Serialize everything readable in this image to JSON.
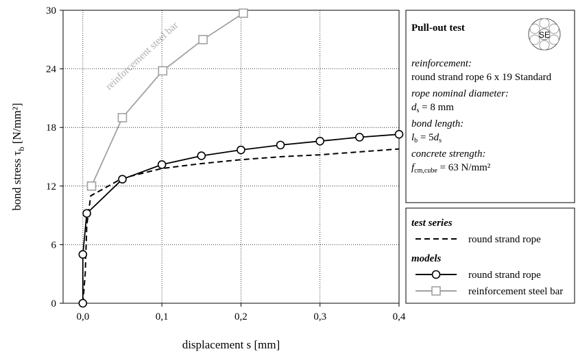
{
  "chart_data": {
    "type": "line",
    "xlabel": "displacement s [mm]",
    "ylabel": {
      "text": "bond stress τ",
      "sub": "b",
      "unit": "[N/mm²]"
    },
    "xlim": [
      -0.025,
      0.4
    ],
    "ylim": [
      0,
      30
    ],
    "xticks": [
      {
        "value": 0,
        "label": "0,0"
      },
      {
        "value": 0.1,
        "label": "0,1"
      },
      {
        "value": 0.2,
        "label": "0,2"
      },
      {
        "value": 0.3,
        "label": "0,3"
      },
      {
        "value": 0.4,
        "label": "0,4"
      }
    ],
    "yticks": [
      0,
      6,
      12,
      18,
      24,
      30
    ],
    "grid": true,
    "legend_groups": [
      "test series",
      "models"
    ],
    "series": [
      {
        "name": "round strand rope",
        "group": 0,
        "color": "#000000",
        "dashed": true,
        "marker": null,
        "x": [
          0,
          0.003,
          0.005,
          0.01,
          0.05,
          0.1,
          0.15,
          0.2,
          0.25,
          0.3,
          0.35,
          0.4
        ],
        "values": [
          0,
          3,
          8,
          11,
          12.8,
          13.8,
          14.3,
          14.7,
          15,
          15.2,
          15.5,
          15.8
        ]
      },
      {
        "name": "round strand rope",
        "group": 1,
        "color": "#000000",
        "dashed": false,
        "marker": "circle",
        "x": [
          0,
          0,
          0.005,
          0.05,
          0.1,
          0.15,
          0.2,
          0.25,
          0.3,
          0.35,
          0.4
        ],
        "values": [
          0,
          5,
          9.2,
          12.7,
          14.2,
          15.1,
          15.7,
          16.2,
          16.6,
          17.0,
          17.3
        ]
      },
      {
        "name": "reinforcement steel bar",
        "group": 1,
        "color": "#a0a0a0",
        "dashed": false,
        "marker": "square",
        "x": [
          0.011,
          0.05,
          0.101,
          0.152,
          0.203
        ],
        "values": [
          12,
          19,
          23.8,
          27,
          29.7
        ]
      }
    ],
    "annotation": "reinforcement steel bar",
    "info": {
      "title": "Pull-out test",
      "logo": "SE",
      "reinforcement_label": "reinforcement:",
      "reinforcement": "round strand rope 6 x 19 Standard",
      "diameter_label": "rope nominal diameter:",
      "diameter": [
        "d",
        "s",
        " = 8 mm"
      ],
      "bond_label": "bond length:",
      "bond": [
        "l",
        "b",
        " = 5",
        "d",
        "s"
      ],
      "concrete_label": "concrete strength:",
      "concrete": [
        "f",
        "cm,cube",
        " = 63 N/mm²"
      ]
    }
  }
}
